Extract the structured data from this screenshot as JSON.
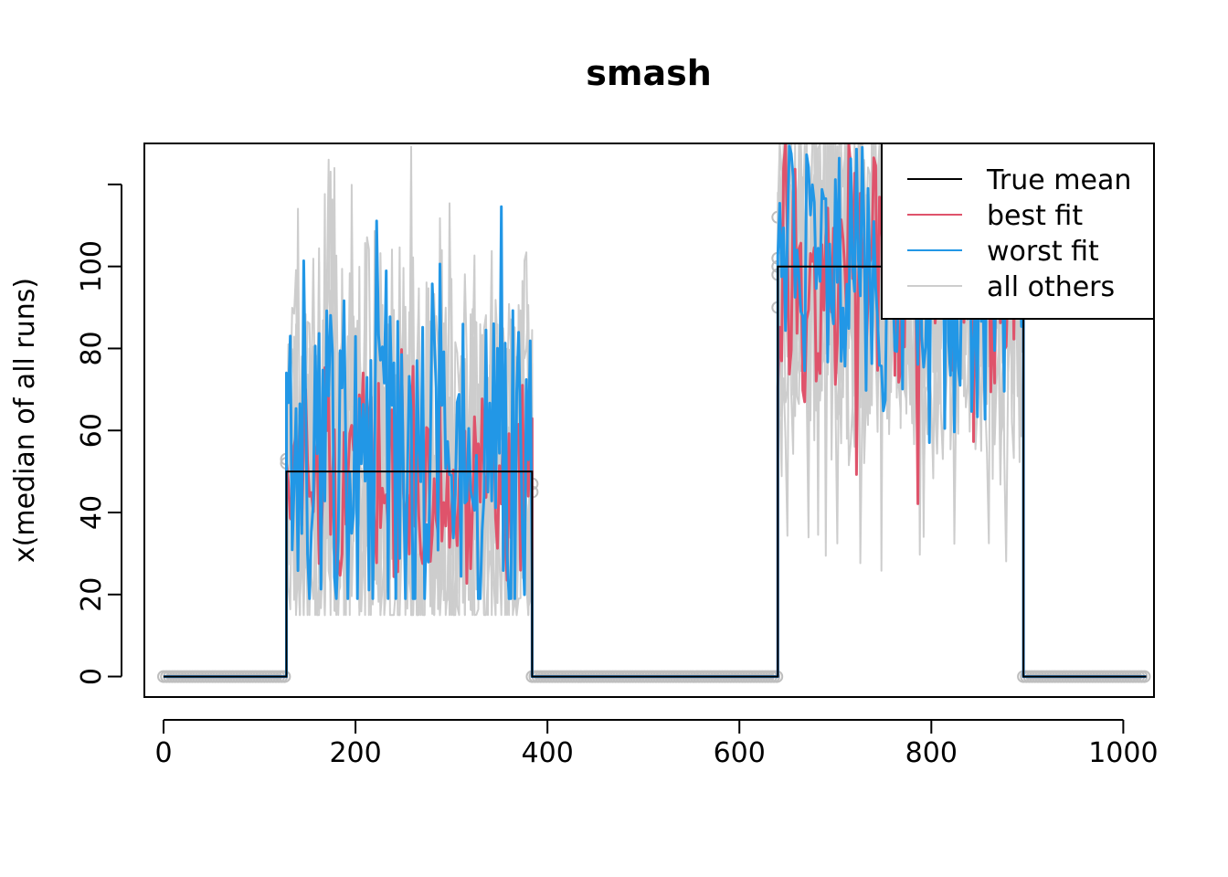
{
  "chart_data": {
    "type": "line",
    "title": "smash",
    "xlabel": "",
    "ylabel": "x(median of all runs)",
    "xlim": [
      -20,
      1032
    ],
    "ylim": [
      -5,
      130
    ],
    "x_ticks": [
      0,
      200,
      400,
      600,
      800,
      1000
    ],
    "y_ticks": [
      0,
      20,
      40,
      60,
      80,
      100,
      120
    ],
    "y_tick_labels": [
      "0",
      "20",
      "40",
      "60",
      "80",
      "100",
      ""
    ],
    "grid": false,
    "legend_position": "top-right",
    "series": [
      {
        "name": "True mean",
        "color": "#000000",
        "x": [
          0,
          128,
          128,
          384,
          384,
          640,
          640,
          896,
          896,
          1024
        ],
        "y": [
          0,
          0,
          50,
          50,
          0,
          0,
          100,
          100,
          0,
          0
        ]
      },
      {
        "name": "best fit",
        "color": "#DF536B",
        "summary": {
          "segments": [
            {
              "from": 128,
              "to": 384,
              "low": 19,
              "high": 80
            },
            {
              "from": 640,
              "to": 896,
              "low": 42,
              "high": 130
            }
          ],
          "baseline": 0
        }
      },
      {
        "name": "worst fit",
        "color": "#2297E6",
        "summary": {
          "segments": [
            {
              "from": 128,
              "to": 384,
              "low": 19,
              "high": 130
            },
            {
              "from": 640,
              "to": 896,
              "low": 44,
              "high": 130
            }
          ],
          "baseline": 0
        }
      },
      {
        "name": "all others",
        "color": "#CDCDCD",
        "summary": {
          "segments": [
            {
              "from": 128,
              "to": 384,
              "low": 15,
              "high": 130
            },
            {
              "from": 640,
              "to": 896,
              "low": 25,
              "high": 130
            }
          ],
          "baseline": 0
        }
      }
    ],
    "observed_points": {
      "color": "#BEBEBE",
      "baseline_value": 0,
      "edge_values": [
        45,
        52,
        47,
        53,
        90,
        98,
        100,
        102,
        112
      ]
    }
  }
}
